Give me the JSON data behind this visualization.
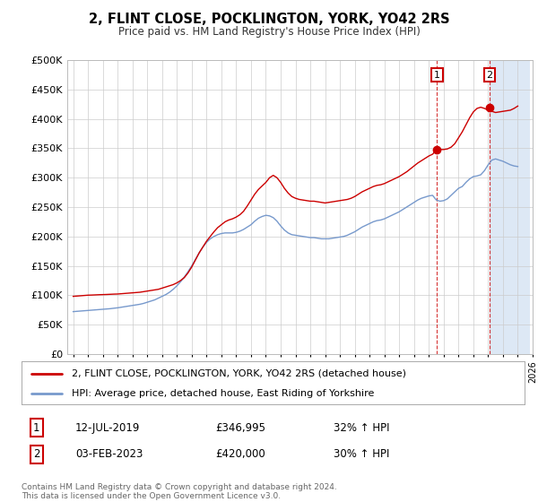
{
  "title": "2, FLINT CLOSE, POCKLINGTON, YORK, YO42 2RS",
  "subtitle": "Price paid vs. HM Land Registry's House Price Index (HPI)",
  "legend_label_red": "2, FLINT CLOSE, POCKLINGTON, YORK, YO42 2RS (detached house)",
  "legend_label_blue": "HPI: Average price, detached house, East Riding of Yorkshire",
  "annotation1_label": "1",
  "annotation1_date": "12-JUL-2019",
  "annotation1_price": "£346,995",
  "annotation1_hpi": "32% ↑ HPI",
  "annotation2_label": "2",
  "annotation2_date": "03-FEB-2023",
  "annotation2_price": "£420,000",
  "annotation2_hpi": "30% ↑ HPI",
  "footer": "Contains HM Land Registry data © Crown copyright and database right 2024.\nThis data is licensed under the Open Government Licence v3.0.",
  "red_color": "#cc0000",
  "blue_color": "#7799cc",
  "shade_color": "#dde8f5",
  "grid_color": "#cccccc",
  "background_color": "#ffffff",
  "plot_bg_color": "#ffffff",
  "red_x": [
    1995.0,
    1995.25,
    1995.5,
    1995.75,
    1996.0,
    1996.25,
    1996.5,
    1996.75,
    1997.0,
    1997.25,
    1997.5,
    1997.75,
    1998.0,
    1998.25,
    1998.5,
    1998.75,
    1999.0,
    1999.25,
    1999.5,
    1999.75,
    2000.0,
    2000.25,
    2000.5,
    2000.75,
    2001.0,
    2001.25,
    2001.5,
    2001.75,
    2002.0,
    2002.25,
    2002.5,
    2002.75,
    2003.0,
    2003.25,
    2003.5,
    2003.75,
    2004.0,
    2004.25,
    2004.5,
    2004.75,
    2005.0,
    2005.25,
    2005.5,
    2005.75,
    2006.0,
    2006.25,
    2006.5,
    2006.75,
    2007.0,
    2007.25,
    2007.5,
    2007.75,
    2008.0,
    2008.25,
    2008.5,
    2008.75,
    2009.0,
    2009.25,
    2009.5,
    2009.75,
    2010.0,
    2010.25,
    2010.5,
    2010.75,
    2011.0,
    2011.25,
    2011.5,
    2011.75,
    2012.0,
    2012.25,
    2012.5,
    2012.75,
    2013.0,
    2013.25,
    2013.5,
    2013.75,
    2014.0,
    2014.25,
    2014.5,
    2014.75,
    2015.0,
    2015.25,
    2015.5,
    2015.75,
    2016.0,
    2016.25,
    2016.5,
    2016.75,
    2017.0,
    2017.25,
    2017.5,
    2017.75,
    2018.0,
    2018.25,
    2018.5,
    2018.75,
    2019.0,
    2019.25,
    2019.5,
    2019.75,
    2020.0,
    2020.25,
    2020.5,
    2020.75,
    2021.0,
    2021.25,
    2021.5,
    2021.75,
    2022.0,
    2022.25,
    2022.5,
    2022.75,
    2023.0,
    2023.25,
    2023.5,
    2023.75,
    2024.0,
    2024.25,
    2024.5,
    2024.75,
    2025.0
  ],
  "red_y": [
    98000,
    98500,
    99000,
    99500,
    100000,
    100200,
    100500,
    100800,
    101000,
    101200,
    101500,
    101800,
    102000,
    102500,
    103000,
    103500,
    104000,
    104500,
    105000,
    106000,
    107000,
    108000,
    109000,
    110000,
    112000,
    114000,
    116000,
    118000,
    121000,
    125000,
    130000,
    138000,
    148000,
    160000,
    172000,
    182000,
    192000,
    200000,
    208000,
    215000,
    220000,
    225000,
    228000,
    230000,
    233000,
    237000,
    243000,
    252000,
    262000,
    272000,
    280000,
    286000,
    292000,
    300000,
    304000,
    300000,
    292000,
    282000,
    274000,
    268000,
    265000,
    263000,
    262000,
    261000,
    260000,
    260000,
    259000,
    258000,
    257000,
    258000,
    259000,
    260000,
    261000,
    262000,
    263000,
    265000,
    268000,
    272000,
    276000,
    279000,
    282000,
    285000,
    287000,
    288000,
    290000,
    293000,
    296000,
    299000,
    302000,
    306000,
    310000,
    315000,
    320000,
    325000,
    329000,
    333000,
    337000,
    340000,
    346995,
    348000,
    348000,
    349000,
    352000,
    358000,
    368000,
    378000,
    390000,
    402000,
    412000,
    418000,
    420000,
    418000,
    415000,
    413000,
    411000,
    412000,
    413000,
    414000,
    415000,
    418000,
    422000
  ],
  "blue_x": [
    1995.0,
    1995.25,
    1995.5,
    1995.75,
    1996.0,
    1996.25,
    1996.5,
    1996.75,
    1997.0,
    1997.25,
    1997.5,
    1997.75,
    1998.0,
    1998.25,
    1998.5,
    1998.75,
    1999.0,
    1999.25,
    1999.5,
    1999.75,
    2000.0,
    2000.25,
    2000.5,
    2000.75,
    2001.0,
    2001.25,
    2001.5,
    2001.75,
    2002.0,
    2002.25,
    2002.5,
    2002.75,
    2003.0,
    2003.25,
    2003.5,
    2003.75,
    2004.0,
    2004.25,
    2004.5,
    2004.75,
    2005.0,
    2005.25,
    2005.5,
    2005.75,
    2006.0,
    2006.25,
    2006.5,
    2006.75,
    2007.0,
    2007.25,
    2007.5,
    2007.75,
    2008.0,
    2008.25,
    2008.5,
    2008.75,
    2009.0,
    2009.25,
    2009.5,
    2009.75,
    2010.0,
    2010.25,
    2010.5,
    2010.75,
    2011.0,
    2011.25,
    2011.5,
    2011.75,
    2012.0,
    2012.25,
    2012.5,
    2012.75,
    2013.0,
    2013.25,
    2013.5,
    2013.75,
    2014.0,
    2014.25,
    2014.5,
    2014.75,
    2015.0,
    2015.25,
    2015.5,
    2015.75,
    2016.0,
    2016.25,
    2016.5,
    2016.75,
    2017.0,
    2017.25,
    2017.5,
    2017.75,
    2018.0,
    2018.25,
    2018.5,
    2018.75,
    2019.0,
    2019.25,
    2019.5,
    2019.75,
    2020.0,
    2020.25,
    2020.5,
    2020.75,
    2021.0,
    2021.25,
    2021.5,
    2021.75,
    2022.0,
    2022.25,
    2022.5,
    2022.75,
    2023.0,
    2023.25,
    2023.5,
    2023.75,
    2024.0,
    2024.25,
    2024.5,
    2024.75,
    2025.0
  ],
  "blue_y": [
    72000,
    72500,
    73000,
    73500,
    74000,
    74500,
    75000,
    75500,
    76000,
    76500,
    77000,
    77800,
    78500,
    79500,
    80500,
    81500,
    82500,
    83500,
    84500,
    86000,
    88000,
    90000,
    92000,
    95000,
    98000,
    101000,
    105000,
    110000,
    116000,
    123000,
    131000,
    140000,
    150000,
    161000,
    172000,
    182000,
    190000,
    196000,
    200000,
    203000,
    205000,
    206000,
    206000,
    206000,
    207000,
    209000,
    212000,
    216000,
    220000,
    226000,
    231000,
    234000,
    236000,
    235000,
    232000,
    226000,
    218000,
    211000,
    206000,
    203000,
    202000,
    201000,
    200000,
    199000,
    198000,
    198000,
    197000,
    196000,
    196000,
    196000,
    197000,
    198000,
    199000,
    200000,
    202000,
    205000,
    208000,
    212000,
    216000,
    219000,
    222000,
    225000,
    227000,
    228000,
    230000,
    233000,
    236000,
    239000,
    242000,
    246000,
    250000,
    254000,
    258000,
    262000,
    265000,
    267000,
    269000,
    270000,
    262000,
    260000,
    261000,
    264000,
    270000,
    276000,
    282000,
    285000,
    292000,
    298000,
    302000,
    303000,
    305000,
    312000,
    322000,
    330000,
    332000,
    330000,
    328000,
    325000,
    322000,
    320000,
    319000
  ],
  "ylim": [
    0,
    500000
  ],
  "yticks": [
    0,
    50000,
    100000,
    150000,
    200000,
    250000,
    300000,
    350000,
    400000,
    450000,
    500000
  ],
  "xlim_left": 1994.6,
  "xlim_right": 2025.8,
  "xtick_years": [
    1995,
    1996,
    1997,
    1998,
    1999,
    2000,
    2001,
    2002,
    2003,
    2004,
    2005,
    2006,
    2007,
    2008,
    2009,
    2010,
    2011,
    2012,
    2013,
    2014,
    2015,
    2016,
    2017,
    2018,
    2019,
    2020,
    2021,
    2022,
    2023,
    2024,
    2025,
    2026
  ],
  "sale1_x": 2019.54,
  "sale1_y": 346995,
  "sale2_x": 2023.09,
  "sale2_y": 420000,
  "shade_start": 2023.09,
  "shade_end": 2025.8
}
